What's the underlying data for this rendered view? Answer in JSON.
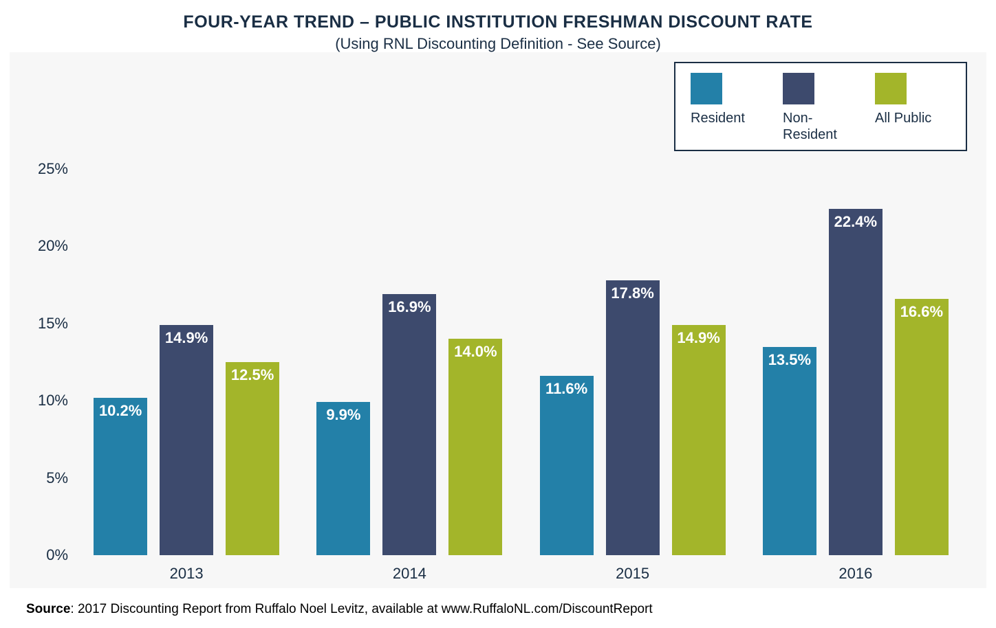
{
  "title": "FOUR-YEAR TREND – PUBLIC INSTITUTION FRESHMAN DISCOUNT RATE",
  "subtitle": "(Using RNL Discounting Definition - See Source)",
  "title_fontsize": 25,
  "subtitle_fontsize": 22,
  "chart": {
    "type": "bar",
    "background_color": "#f7f7f7",
    "page_background": "#ffffff",
    "categories": [
      "2013",
      "2014",
      "2015",
      "2016"
    ],
    "series": [
      {
        "name": "Resident",
        "color": "#2380a8",
        "values": [
          10.2,
          9.9,
          11.6,
          13.5
        ],
        "labels": [
          "10.2%",
          "9.9%",
          "11.6%",
          "13.5%"
        ]
      },
      {
        "name": "Non-Resident",
        "color": "#3d4a6d",
        "values": [
          14.9,
          16.9,
          17.8,
          22.4
        ],
        "labels": [
          "14.9%",
          "16.9%",
          "17.8%",
          "22.4%"
        ]
      },
      {
        "name": "All Public",
        "color": "#a3b52a",
        "values": [
          12.5,
          14.0,
          14.9,
          16.6
        ],
        "labels": [
          "12.5%",
          "14.0%",
          "14.9%",
          "16.6%"
        ]
      }
    ],
    "ylim": [
      0,
      25
    ],
    "ytick_step": 5,
    "ytick_labels": [
      "0%",
      "5%",
      "10%",
      "15%",
      "20%",
      "25%"
    ],
    "axis_fontsize": 22,
    "bar_label_fontsize": 22,
    "bar_label_color": "#ffffff",
    "bar_width_pct": 6.0,
    "bar_gap_pct": 1.4,
    "group_width_pct": 25.0
  },
  "legend": {
    "border_color": "#1a2e44",
    "swatch_size": 46,
    "label_fontsize": 20,
    "items": [
      {
        "label": "Resident",
        "color": "#2380a8"
      },
      {
        "label": "Non-\nResident",
        "color": "#3d4a6d"
      },
      {
        "label": "All Public",
        "color": "#a3b52a"
      }
    ]
  },
  "source": {
    "prefix": "Source",
    "text": ": 2017 Discounting Report from Ruffalo Noel Levitz, available at www.RuffaloNL.com/DiscountReport",
    "fontsize": 19
  }
}
